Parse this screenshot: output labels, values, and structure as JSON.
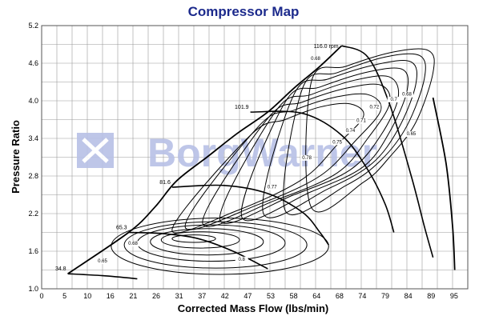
{
  "chart_data": {
    "type": "line",
    "title": "Compressor Map",
    "xlabel": "Corrected Mass Flow (lbs/min)",
    "ylabel": "Pressure Ratio",
    "xlim": [
      0,
      98
    ],
    "ylim": [
      1.0,
      5.2
    ],
    "x_ticks": [
      "0",
      "5",
      "10",
      "16",
      "21",
      "26",
      "31",
      "37",
      "42",
      "47",
      "53",
      "58",
      "64",
      "68",
      "74",
      "79",
      "84",
      "89",
      "95"
    ],
    "y_ticks": [
      "1.0",
      "1.6",
      "2.2",
      "2.8",
      "3.4",
      "4.0",
      "4.6",
      "5.2"
    ],
    "grid": true,
    "watermark": "BorgWarner",
    "colors": {
      "title": "#1c2a8c",
      "watermark": "#b8c0e6",
      "lines": "#000000",
      "grid": "#9a9a9a"
    },
    "surge_line": {
      "x": [
        6,
        20,
        26,
        31,
        38,
        45,
        52,
        58,
        64,
        69
      ],
      "y": [
        1.24,
        1.9,
        2.3,
        2.72,
        3.1,
        3.48,
        3.82,
        4.2,
        4.55,
        4.88
      ]
    },
    "speed_lines": [
      {
        "name": "34.8",
        "x": [
          6,
          14,
          22
        ],
        "y": [
          1.24,
          1.21,
          1.16
        ]
      },
      {
        "name": "65.3",
        "x": [
          20,
          28,
          36,
          44,
          52
        ],
        "y": [
          1.9,
          1.88,
          1.8,
          1.6,
          1.32
        ]
      },
      {
        "name": "81.6",
        "x": [
          30,
          42,
          52,
          60,
          64,
          66
        ],
        "y": [
          2.62,
          2.65,
          2.52,
          2.22,
          1.9,
          1.7
        ]
      },
      {
        "name": "101.9",
        "x": [
          48,
          60,
          69,
          75,
          79,
          81
        ],
        "y": [
          3.82,
          3.8,
          3.45,
          2.9,
          2.35,
          1.9
        ]
      },
      {
        "name": "116.0",
        "x": [
          69,
          75,
          80,
          85,
          88,
          90
        ],
        "y": [
          4.88,
          4.7,
          3.95,
          2.8,
          2.0,
          1.5
        ]
      }
    ],
    "choke_line": {
      "x": [
        90,
        93,
        94.5,
        95
      ],
      "y": [
        4.05,
        3.0,
        2.0,
        1.3
      ]
    },
    "efficiency_labels": [
      {
        "label": "0.65",
        "x": 14,
        "y": 1.42
      },
      {
        "label": "0.68",
        "x": 21,
        "y": 1.7
      },
      {
        "label": "0.8",
        "x": 46,
        "y": 1.45
      },
      {
        "label": "0.77",
        "x": 53,
        "y": 2.6
      },
      {
        "label": "0.78",
        "x": 61,
        "y": 3.07
      },
      {
        "label": "0.75",
        "x": 68,
        "y": 3.32
      },
      {
        "label": "0.74",
        "x": 71,
        "y": 3.5
      },
      {
        "label": "0.71",
        "x": 73.5,
        "y": 3.66
      },
      {
        "label": "0.72",
        "x": 76.5,
        "y": 3.88
      },
      {
        "label": "0.7",
        "x": 81,
        "y": 4.0
      },
      {
        "label": "0.68",
        "x": 84,
        "y": 4.08
      },
      {
        "label": "0.68",
        "x": 63,
        "y": 4.65
      },
      {
        "label": "0.65",
        "x": 85,
        "y": 3.45
      }
    ],
    "efficiency_islands": [
      {
        "cx": 35,
        "cy": 1.8,
        "rx": 5,
        "ry": 0.06
      },
      {
        "cx": 36.5,
        "cy": 1.78,
        "rx": 9,
        "ry": 0.13
      },
      {
        "cx": 38,
        "cy": 1.75,
        "rx": 13,
        "ry": 0.21
      },
      {
        "cx": 39,
        "cy": 1.73,
        "rx": 17,
        "ry": 0.29
      },
      {
        "cx": 40,
        "cy": 1.7,
        "rx": 21,
        "ry": 0.37
      },
      {
        "cx": 41,
        "cy": 1.68,
        "rx": 25,
        "ry": 0.45
      }
    ],
    "efficiency_bands": [
      {
        "x": [
          30,
          45,
          60,
          68,
          74,
          71,
          64,
          56,
          48
        ],
        "y": [
          1.95,
          2.25,
          2.75,
          3.3,
          3.75,
          3.95,
          3.9,
          3.7,
          3.45
        ]
      },
      {
        "x": [
          33,
          50,
          64,
          72,
          78,
          75,
          67,
          58,
          50
        ],
        "y": [
          2.0,
          2.35,
          2.8,
          3.35,
          3.85,
          4.1,
          4.05,
          3.85,
          3.6
        ]
      },
      {
        "x": [
          37,
          54,
          68,
          75,
          80,
          78,
          70,
          60,
          52
        ],
        "y": [
          2.05,
          2.42,
          2.85,
          3.4,
          3.95,
          4.25,
          4.2,
          3.98,
          3.72
        ]
      },
      {
        "x": [
          41,
          58,
          71,
          78,
          82,
          80,
          72,
          62,
          54
        ],
        "y": [
          2.1,
          2.5,
          2.9,
          3.45,
          4.05,
          4.38,
          4.33,
          4.1,
          3.85
        ]
      },
      {
        "x": [
          46,
          62,
          74,
          80,
          84,
          83,
          75,
          64,
          56
        ],
        "y": [
          2.15,
          2.55,
          2.95,
          3.5,
          4.15,
          4.5,
          4.46,
          4.22,
          3.98
        ]
      },
      {
        "x": [
          51,
          66,
          76,
          82,
          86,
          85,
          77,
          66,
          58
        ],
        "y": [
          2.2,
          2.6,
          3.0,
          3.55,
          4.25,
          4.62,
          4.58,
          4.35,
          4.1
        ]
      },
      {
        "x": [
          56,
          70,
          78,
          84,
          88,
          87,
          79,
          68,
          60
        ],
        "y": [
          2.25,
          2.65,
          3.05,
          3.6,
          4.35,
          4.72,
          4.7,
          4.45,
          4.2
        ]
      },
      {
        "x": [
          62,
          74,
          80,
          86,
          90,
          89,
          81,
          70,
          62
        ],
        "y": [
          2.3,
          2.7,
          3.1,
          3.65,
          4.45,
          4.8,
          4.78,
          4.55,
          4.3
        ]
      }
    ]
  }
}
